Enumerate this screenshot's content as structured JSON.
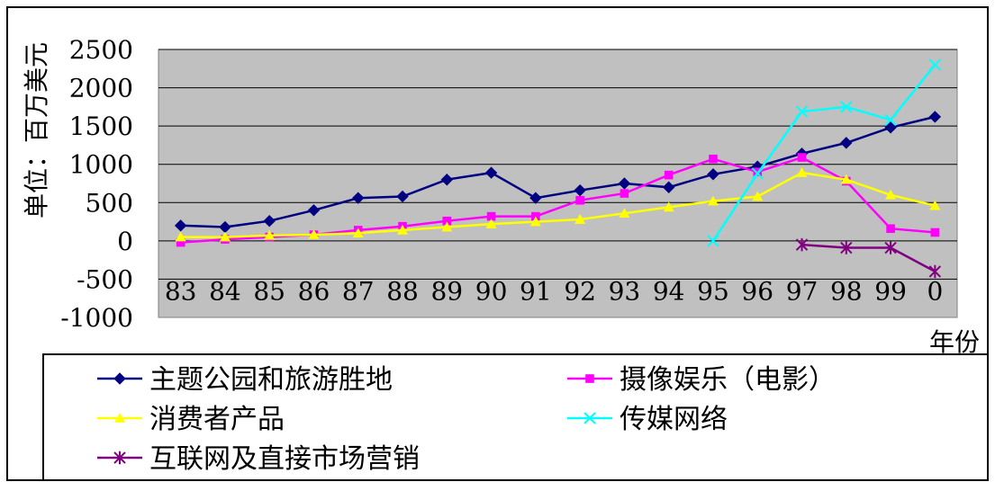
{
  "chart_data": {
    "type": "line",
    "title": "",
    "ylabel": "单位：百万美元",
    "xlabel": "年份",
    "ylim": [
      -1000,
      2500
    ],
    "yticks": [
      2500,
      2000,
      1500,
      1000,
      500,
      0,
      -500,
      -1000
    ],
    "ytick_labels": [
      "2500",
      "2000",
      "1500",
      "1000",
      "500",
      "0",
      "-500",
      "-1000"
    ],
    "categories": [
      "83",
      "84",
      "85",
      "86",
      "87",
      "88",
      "89",
      "90",
      "91",
      "92",
      "93",
      "94",
      "95",
      "96",
      "97",
      "98",
      "99",
      "0"
    ],
    "grid": true,
    "legend_position": "bottom",
    "series": [
      {
        "name": "主题公园和旅游胜地",
        "color": "#000080",
        "marker": "diamond",
        "values": [
          200,
          180,
          260,
          400,
          560,
          580,
          800,
          890,
          560,
          660,
          750,
          700,
          870,
          970,
          1140,
          1280,
          1480,
          1620
        ]
      },
      {
        "name": "摄像娱乐（电影）",
        "color": "#FF00FF",
        "marker": "square",
        "values": [
          -20,
          20,
          50,
          80,
          140,
          190,
          260,
          320,
          320,
          530,
          620,
          860,
          1070,
          900,
          1090,
          780,
          160,
          110
        ]
      },
      {
        "name": "消费者产品",
        "color": "#FFFF00",
        "marker": "triangle",
        "values": [
          50,
          50,
          70,
          80,
          100,
          140,
          180,
          220,
          250,
          280,
          360,
          440,
          520,
          580,
          890,
          800,
          600,
          460
        ]
      },
      {
        "name": "传媒网络",
        "color": "#00FFFF",
        "marker": "x",
        "values": [
          null,
          null,
          null,
          null,
          null,
          null,
          null,
          null,
          null,
          null,
          null,
          null,
          0,
          880,
          1690,
          1750,
          1580,
          2300
        ]
      },
      {
        "name": "互联网及直接市场营销",
        "color": "#800080",
        "marker": "star",
        "values": [
          null,
          null,
          null,
          null,
          null,
          null,
          null,
          null,
          null,
          null,
          null,
          null,
          null,
          null,
          -50,
          -90,
          -90,
          -400
        ]
      }
    ]
  }
}
